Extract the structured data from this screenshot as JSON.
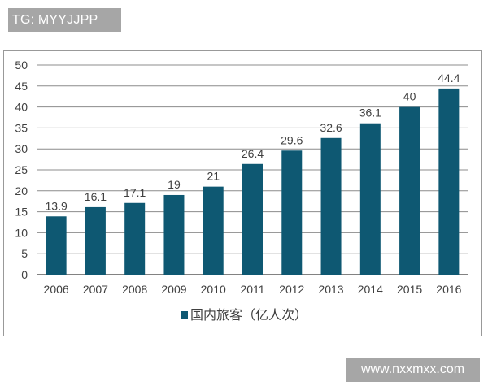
{
  "watermarks": {
    "top_left": "TG: MYYJJPP",
    "bottom_right": "www.nxxmxx.com"
  },
  "colors": {
    "bar": "#0e5872",
    "grid": "#8c8c8c",
    "axis": "#595959",
    "text": "#404040",
    "watermark_bg": "#a6a6a6"
  },
  "chart_data": {
    "type": "bar",
    "title": "",
    "xlabel": "",
    "ylabel": "",
    "categories": [
      "2006",
      "2007",
      "2008",
      "2009",
      "2010",
      "2011",
      "2012",
      "2013",
      "2014",
      "2015",
      "2016"
    ],
    "series": [
      {
        "name": "国内旅客（亿人次）",
        "values": [
          13.9,
          16.1,
          17.1,
          19,
          21,
          26.4,
          29.6,
          32.6,
          36.1,
          40,
          44.4
        ],
        "labels": [
          "13.9",
          "16.1",
          "17.1",
          "19",
          "21",
          "26.4",
          "29.6",
          "32.6",
          "36.1",
          "40",
          "44.4"
        ]
      }
    ],
    "ylim": [
      0,
      50
    ],
    "yticks": [
      0,
      5,
      10,
      15,
      20,
      25,
      30,
      35,
      40,
      45,
      50
    ],
    "grid": true,
    "legend_position": "bottom",
    "data_labels": true
  },
  "legend": {
    "label": "国内旅客（亿人次）"
  }
}
